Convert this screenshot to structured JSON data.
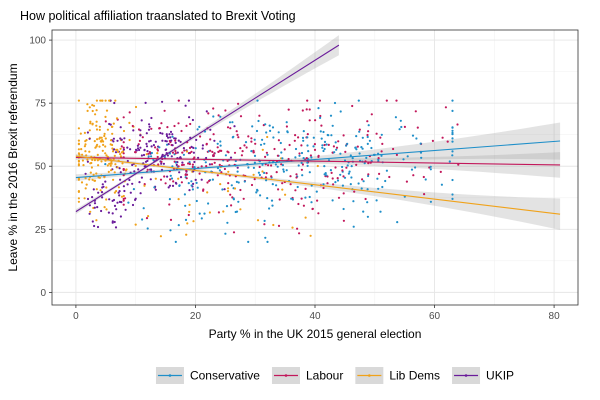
{
  "chart_data": {
    "type": "scatter",
    "title": "How political affiliation traanslated to Brexit Voting",
    "xlabel": "Party % in the UK 2015 general election",
    "ylabel": "Leave % in the 2016 Brexit referendum",
    "xlim": [
      -4,
      84
    ],
    "ylim": [
      -5,
      104
    ],
    "x_ticks": [
      0,
      20,
      40,
      60,
      80
    ],
    "y_ticks": [
      0,
      25,
      50,
      75,
      100
    ],
    "grid": true,
    "legend_position": "bottom",
    "series": [
      {
        "name": "Conservative",
        "color": "#1f8fc9",
        "trend": {
          "x": [
            0,
            81
          ],
          "y": [
            45.5,
            60
          ],
          "band": [
            [
              3,
              4
            ],
            [
              3,
              5
            ]
          ]
        },
        "clusters": [
          {
            "n": 260,
            "x_mean": 40,
            "x_sd": 12,
            "y_mean": 53,
            "y_sd": 10,
            "x_min": 8,
            "x_max": 63
          },
          {
            "n": 60,
            "x_mean": 20,
            "x_sd": 7,
            "y_mean": 42,
            "y_sd": 11,
            "x_min": 3,
            "x_max": 35
          }
        ]
      },
      {
        "name": "Labour",
        "color": "#c2185b",
        "trend": {
          "x": [
            0,
            81
          ],
          "y": [
            53.5,
            50.5
          ],
          "band": [
            [
              1.5,
              3
            ],
            [
              2,
              2.5
            ]
          ]
        },
        "clusters": [
          {
            "n": 220,
            "x_mean": 35,
            "x_sd": 14,
            "y_mean": 52,
            "y_sd": 11,
            "x_min": 8,
            "x_max": 71
          },
          {
            "n": 90,
            "x_mean": 18,
            "x_sd": 6,
            "y_mean": 57,
            "y_sd": 9,
            "x_min": 5,
            "x_max": 30
          }
        ]
      },
      {
        "name": "Lib Dems",
        "color": "#f0a21a",
        "trend": {
          "x": [
            0,
            81
          ],
          "y": [
            54,
            31
          ],
          "band": [
            [
              1,
              2.5
            ],
            [
              2.5,
              6
            ]
          ]
        },
        "clusters": [
          {
            "n": 180,
            "x_mean": 4,
            "x_sd": 2.5,
            "y_mean": 54,
            "y_sd": 12,
            "x_min": 0.5,
            "x_max": 15
          },
          {
            "n": 40,
            "x_mean": 22,
            "x_sd": 9,
            "y_mean": 40,
            "y_sd": 9,
            "x_min": 10,
            "x_max": 52
          }
        ]
      },
      {
        "name": "UKIP",
        "color": "#6a1b9a",
        "trend": {
          "x": [
            0,
            44
          ],
          "y": [
            32,
            98
          ],
          "band": [
            [
              1.5,
              1
            ],
            [
              1.5,
              3
            ]
          ]
        },
        "clusters": [
          {
            "n": 180,
            "x_mean": 14,
            "x_sd": 5,
            "y_mean": 55,
            "y_sd": 8,
            "x_min": 2,
            "x_max": 28
          },
          {
            "n": 40,
            "x_mean": 5,
            "x_sd": 2,
            "y_mean": 35,
            "y_sd": 8,
            "x_min": 1,
            "x_max": 10
          }
        ]
      }
    ]
  }
}
